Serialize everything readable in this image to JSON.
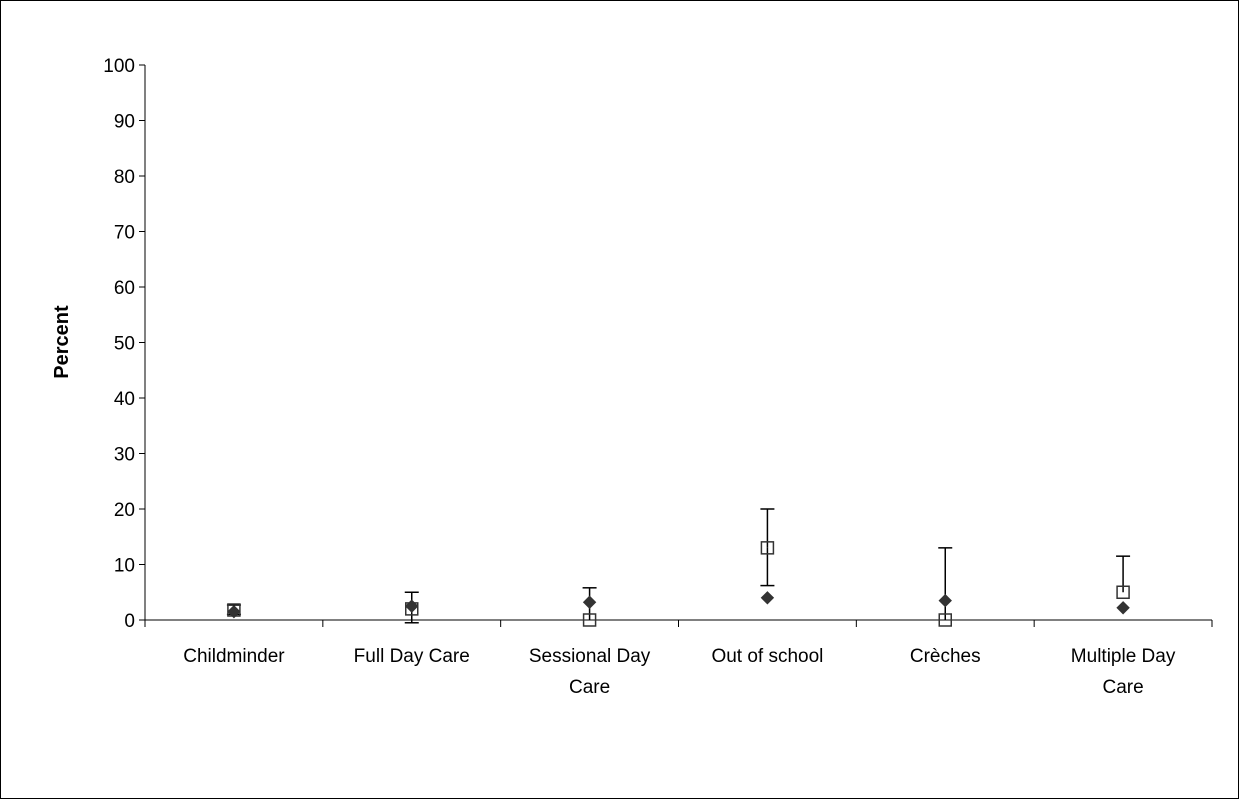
{
  "chart_data": {
    "type": "scatter",
    "title": "",
    "xlabel": "",
    "ylabel": "Percent",
    "ylim": [
      0,
      100
    ],
    "yticks": [
      0,
      10,
      20,
      30,
      40,
      50,
      60,
      70,
      80,
      90,
      100
    ],
    "grid": false,
    "categories": [
      [
        "Childminder"
      ],
      [
        "Full Day Care"
      ],
      [
        "Sessional Day",
        "Care"
      ],
      [
        "Out of school"
      ],
      [
        "Crèches"
      ],
      [
        "Multiple Day",
        "Care"
      ]
    ],
    "series": [
      {
        "marker": "filled-diamond",
        "color": "#333333",
        "values": [
          1.5,
          2.5,
          3.2,
          4.0,
          3.5,
          2.2
        ]
      },
      {
        "marker": "open-square",
        "color": "#333333",
        "values": [
          1.8,
          2.0,
          0.0,
          13.0,
          0.0,
          5.0
        ],
        "error_low": [
          1.0,
          -0.5,
          null,
          6.2,
          null,
          null
        ],
        "error_high": [
          2.7,
          5.0,
          5.8,
          20.0,
          13.0,
          11.5
        ]
      }
    ]
  }
}
